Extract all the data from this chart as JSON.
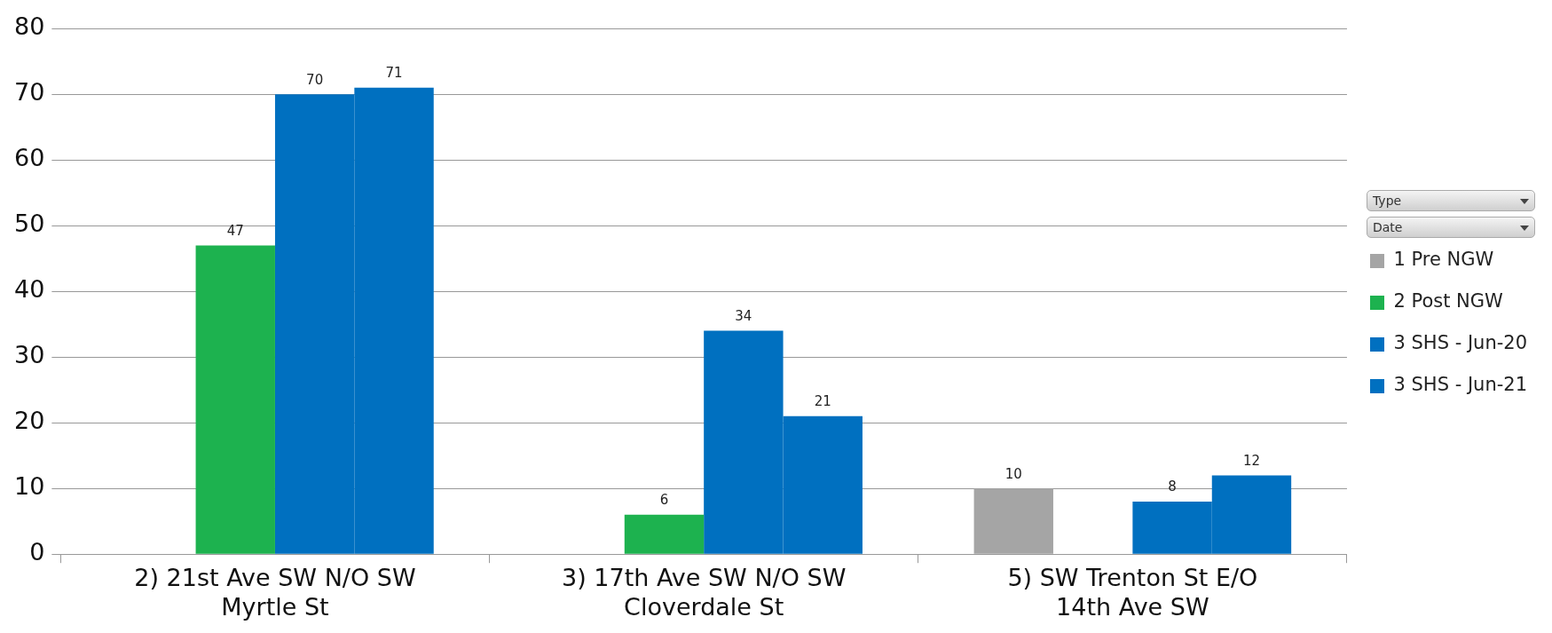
{
  "chart_data": {
    "type": "bar",
    "categories": [
      "2) 21st Ave SW N/O SW Myrtle St",
      "3) 17th Ave SW N/O SW Cloverdale St",
      "5) SW Trenton St E/O 14th Ave SW"
    ],
    "series": [
      {
        "name": "1 Pre NGW",
        "color": "#a5a5a5",
        "values": [
          null,
          null,
          10
        ]
      },
      {
        "name": "2 Post NGW",
        "color": "#1db24f",
        "values": [
          47,
          6,
          null
        ]
      },
      {
        "name": "3 SHS - Jun-20",
        "color": "#0070c0",
        "values": [
          70,
          34,
          8
        ]
      },
      {
        "name": "3 SHS - Jun-21",
        "color": "#0070c0",
        "values": [
          71,
          21,
          12
        ]
      }
    ],
    "ylim": [
      0,
      80
    ],
    "yticks": [
      0,
      10,
      20,
      30,
      40,
      50,
      60,
      70,
      80
    ],
    "grid": "y",
    "legend": "right",
    "data_labels": true,
    "annotations": [
      "Type",
      "Date"
    ]
  }
}
